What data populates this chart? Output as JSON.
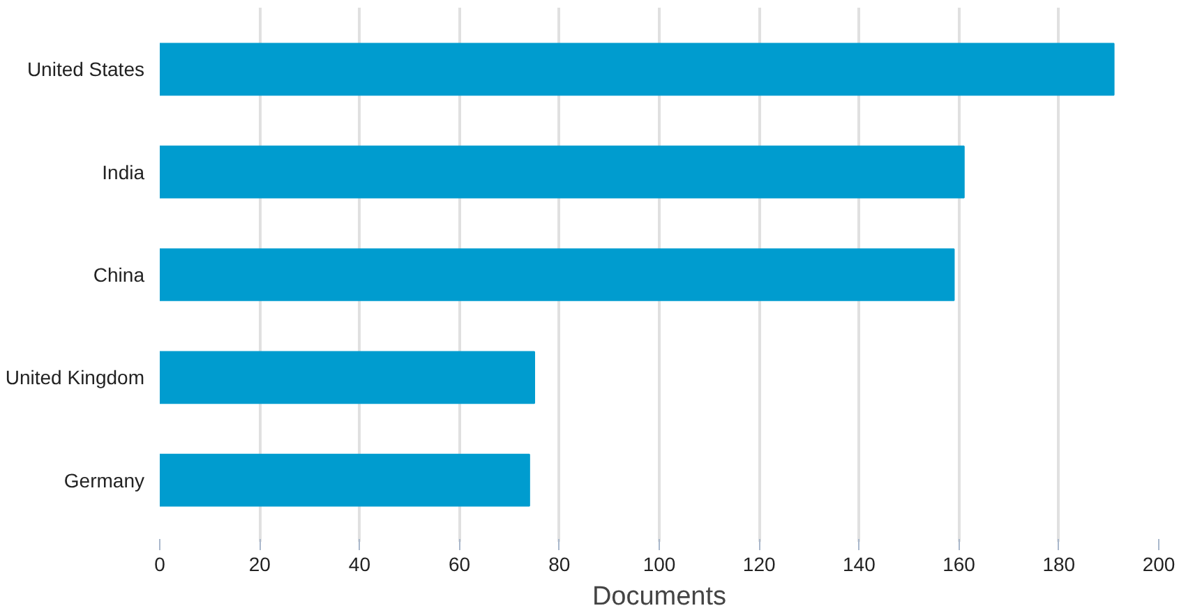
{
  "chart_data": {
    "type": "bar",
    "orientation": "horizontal",
    "xlabel": "Documents",
    "categories": [
      "United States",
      "India",
      "China",
      "United Kingdom",
      "Germany"
    ],
    "values": [
      191,
      161,
      159,
      75,
      74
    ],
    "color": "#009ccf",
    "xlim": [
      0,
      200
    ],
    "xticks": [
      0,
      20,
      40,
      60,
      80,
      100,
      120,
      140,
      160,
      180,
      200
    ],
    "grid": "x"
  }
}
